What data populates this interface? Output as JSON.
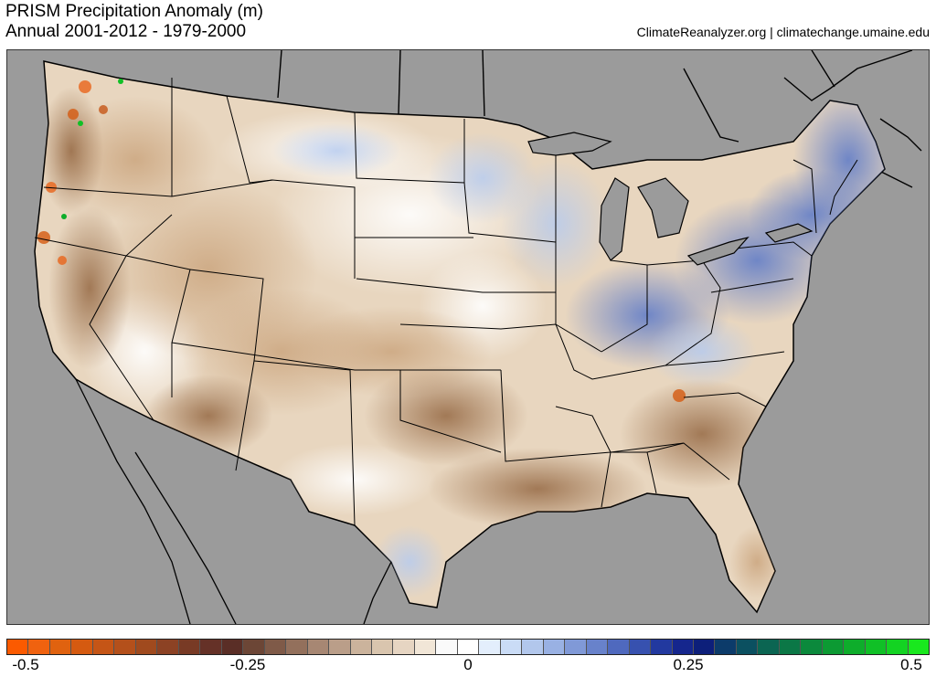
{
  "header": {
    "title": "PRISM Precipitation Anomaly (m)",
    "subtitle": "Annual 2001-2012 - 1979-2000",
    "credit": "ClimateReanalyzer.org | climatechange.umaine.edu"
  },
  "colorbar": {
    "colors": [
      "#fb5a00",
      "#f0620f",
      "#e0620f",
      "#d55a10",
      "#c55516",
      "#b4501b",
      "#a04a1e",
      "#8c4224",
      "#783a25",
      "#653127",
      "#5a2e26",
      "#6c4636",
      "#7f5a48",
      "#93705c",
      "#a78773",
      "#ba9e89",
      "#cbb39c",
      "#d9c5ae",
      "#e6d5c2",
      "#f1e6d7",
      "#fafafa",
      "#ffffff",
      "#e3eefc",
      "#cadcf6",
      "#b2c7ec",
      "#99b1e3",
      "#8099d7",
      "#6882cb",
      "#4f69be",
      "#3751af",
      "#22399f",
      "#15268d",
      "#0d1f7a",
      "#0c3b6a",
      "#0b5060",
      "#0b6552",
      "#0b7746",
      "#0b893c",
      "#0c9a33",
      "#0ead2b",
      "#10c026",
      "#13d322",
      "#19e81e"
    ],
    "ticks": [
      "-0.5",
      "-0.25",
      "0",
      "0.25",
      "0.5"
    ]
  },
  "colors": {
    "background": "#9b9b9b",
    "dry": "#b08055",
    "wet": "#6a85d0",
    "neutral": "#ffffff"
  }
}
